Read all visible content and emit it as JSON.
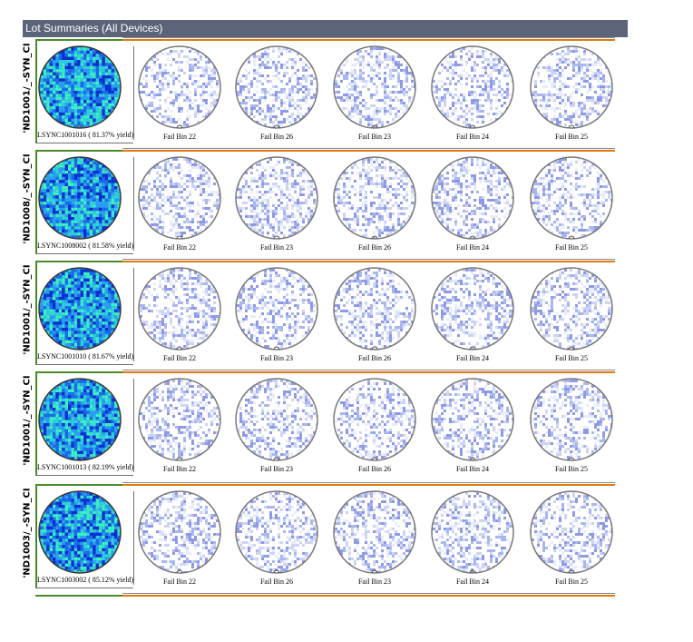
{
  "panel": {
    "title": "Lot Summaries (All Devices)"
  },
  "rows": [
    {
      "device": "'ND1001/_-SYN_CI",
      "lot_caption": "LSYNC1001016 ( 81.37% yield)",
      "fail_bins": [
        "Fail Bin 22",
        "Fail Bin 26",
        "Fail Bin 23",
        "Fail Bin 24",
        "Fail Bin 25"
      ]
    },
    {
      "device": "'ND1008/_-SYN_CI",
      "lot_caption": "LSYNC1008002 ( 81.58% yield)",
      "fail_bins": [
        "Fail Bin 22",
        "Fail Bin 23",
        "Fail Bin 26",
        "Fail Bin 24",
        "Fail Bin 25"
      ]
    },
    {
      "device": "'ND1001/_-SYN_CI",
      "lot_caption": "LSYNC1001010 ( 81.67% yield)",
      "fail_bins": [
        "Fail Bin 22",
        "Fail Bin 23",
        "Fail Bin 26",
        "Fail Bin 24",
        "Fail Bin 25"
      ]
    },
    {
      "device": "'ND1001/_-SYN_CI",
      "lot_caption": "LSYNC1001013 ( 82.19% yield)",
      "fail_bins": [
        "Fail Bin 22",
        "Fail Bin 23",
        "Fail Bin 26",
        "Fail Bin 24",
        "Fail Bin 25"
      ]
    },
    {
      "device": "'ND1003/_-SYN_CI",
      "lot_caption": "LSYNC1003002 ( 85.12% yield)",
      "fail_bins": [
        "Fail Bin 22",
        "Fail Bin 26",
        "Fail Bin 23",
        "Fail Bin 24",
        "Fail Bin 25"
      ]
    }
  ],
  "colors": {
    "header_bg": "#5b6478",
    "accent_orange": "#e07a10",
    "accent_green": "#4a8a2a",
    "summary_pass": [
      "#0a2fd0",
      "#1a6be8",
      "#2aa0f0",
      "#30d0d8",
      "#3cf0c0"
    ],
    "fail_map": [
      "#ffffff",
      "#e8ecfb",
      "#cdd4f4",
      "#aab6ee",
      "#8e9ae6"
    ]
  }
}
